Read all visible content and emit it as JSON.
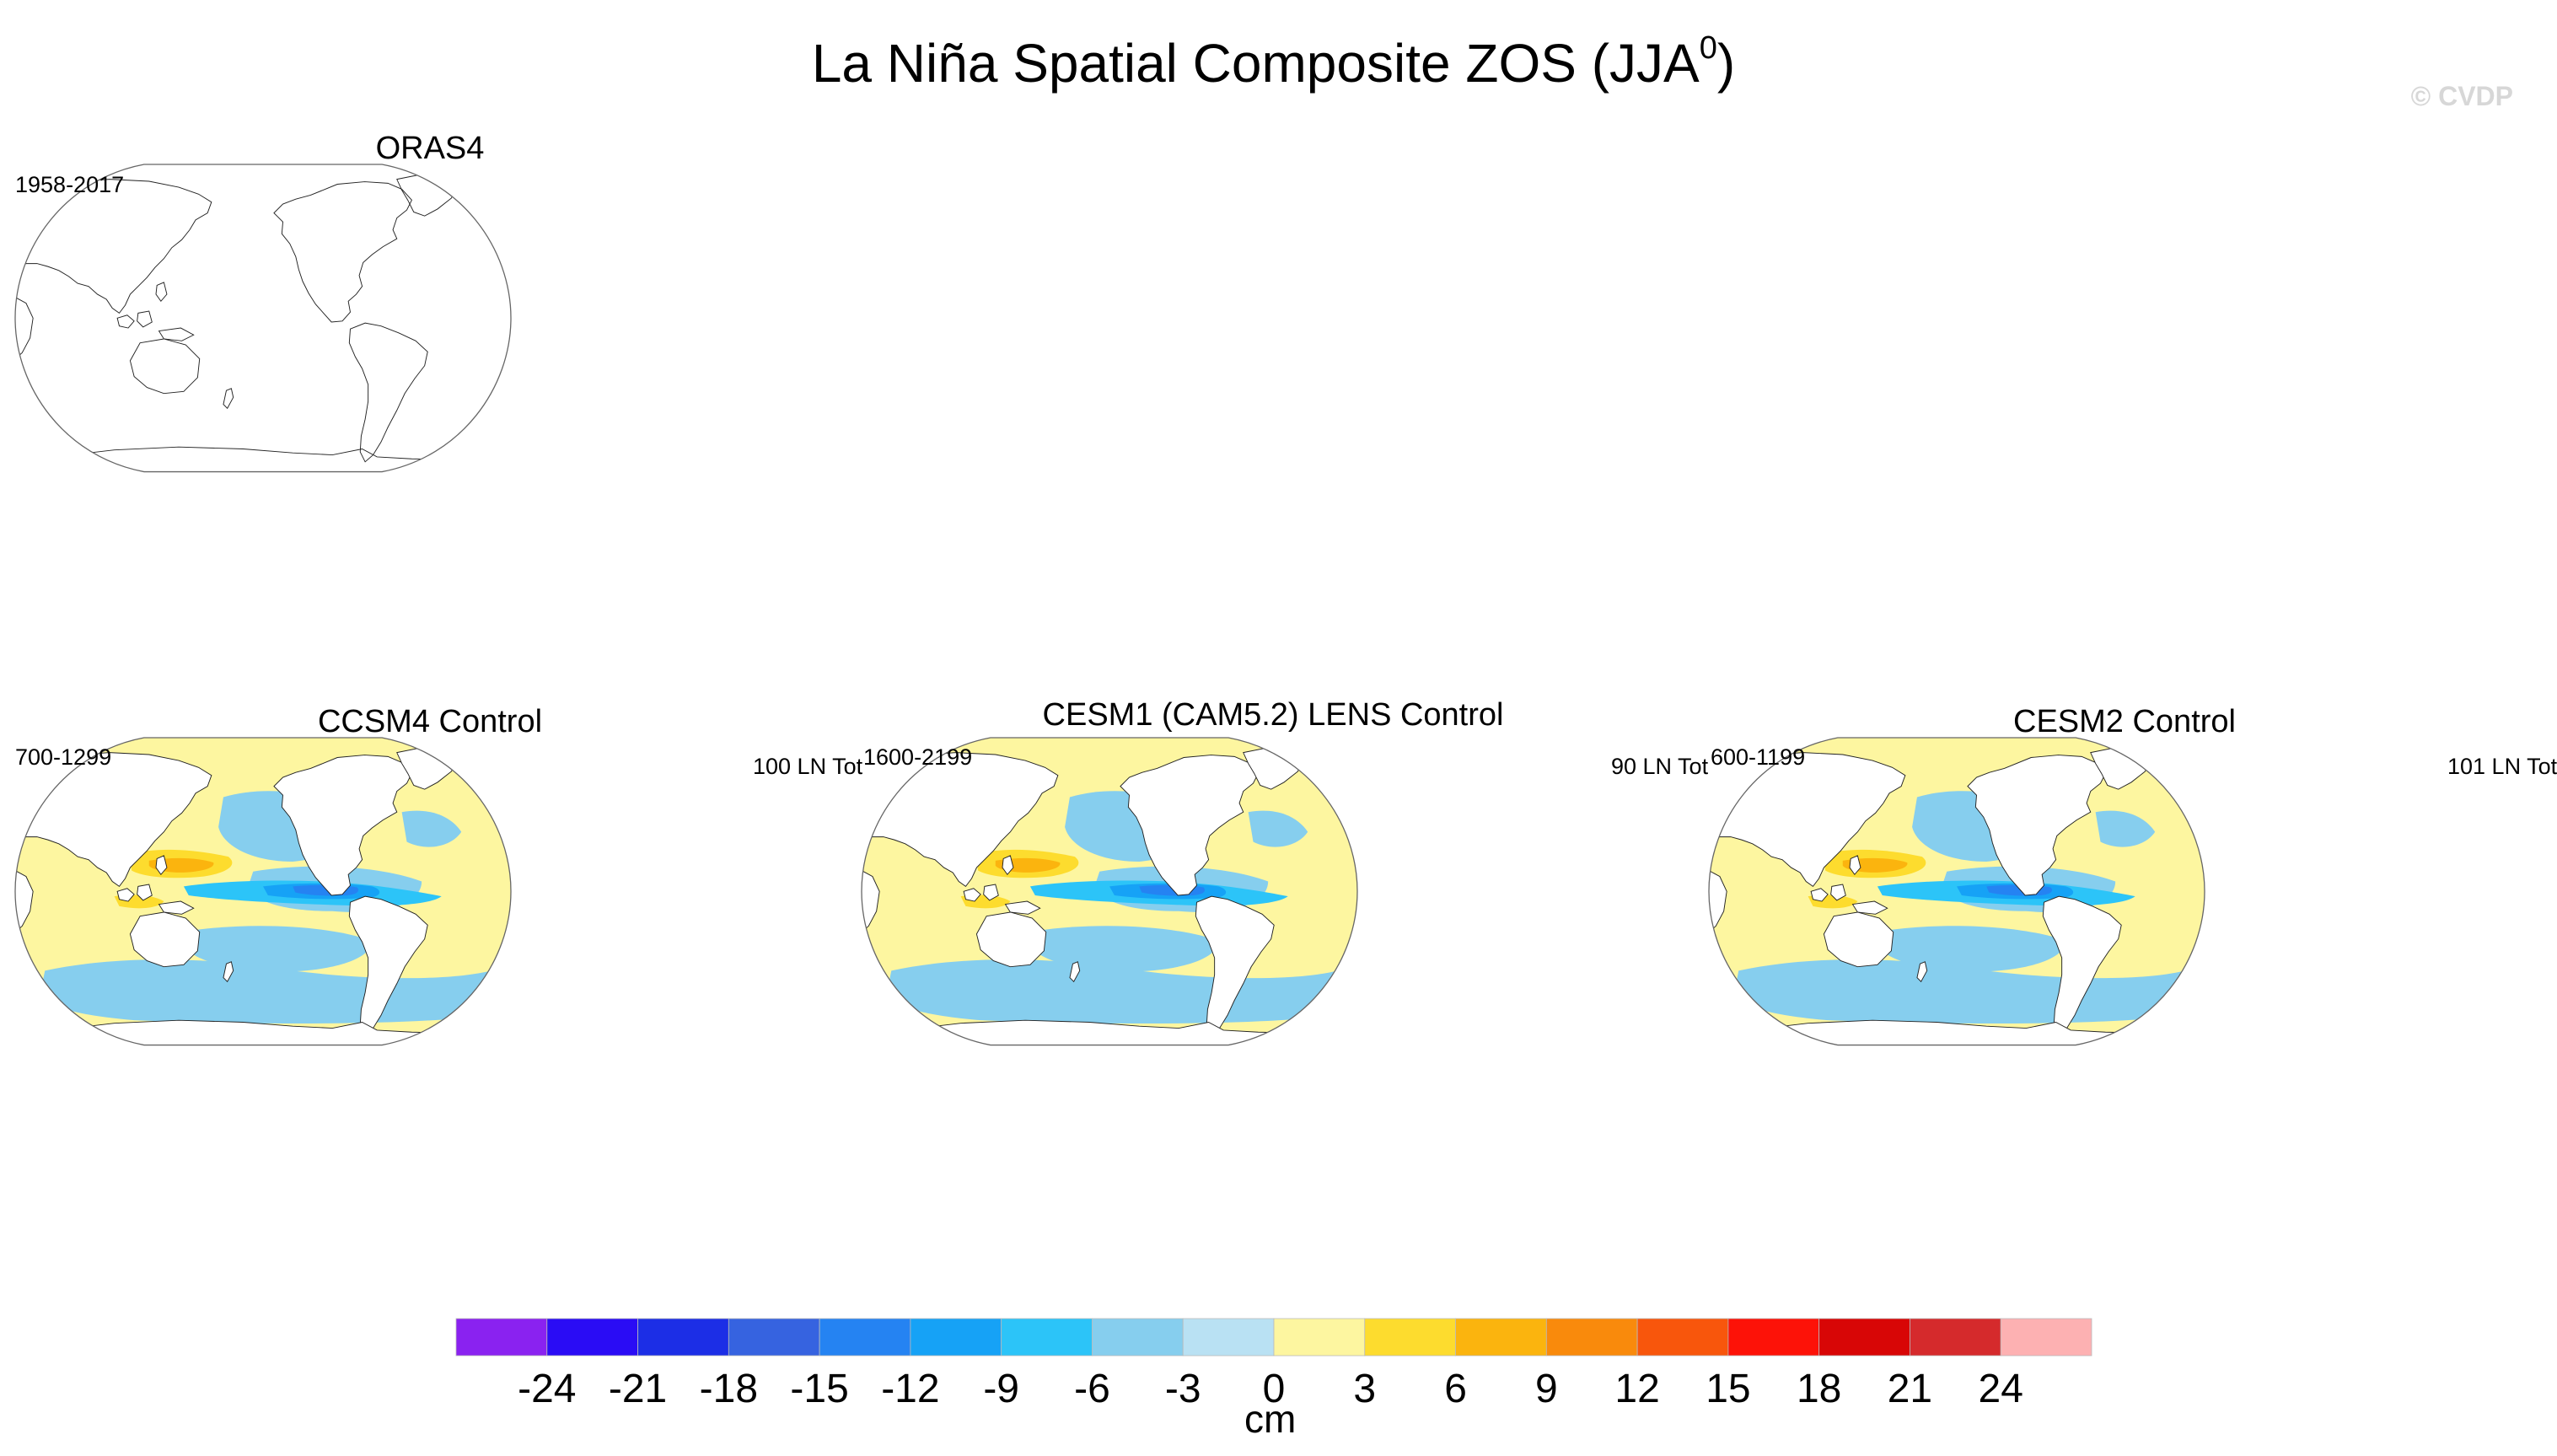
{
  "title": {
    "main": "La Niña Spatial Composite ZOS (JJA",
    "superscript": "0",
    "suffix": ")"
  },
  "watermark": "© CVDP",
  "panels": [
    {
      "name": "ORAS4",
      "years": "1958-2017",
      "count": "",
      "filled": false
    },
    {
      "name": "CCSM4 Control",
      "years": "700-1299",
      "count": "100 LN Tot",
      "filled": true
    },
    {
      "name": "CESM1 (CAM5.2) LENS Control",
      "years": "1600-2199",
      "count": "90 LN Tot",
      "filled": true
    },
    {
      "name": "CESM2 Control",
      "years": "600-1199",
      "count": "101 LN Tot",
      "filled": true
    }
  ],
  "chart_data": {
    "type": "heatmap",
    "title": "La Niña Spatial Composite ZOS (JJA0)",
    "projection": "Robinson (global, Pacific-centered)",
    "variable": "ZOS composite anomaly",
    "unit": "cm",
    "colorbar": {
      "levels": [
        -24,
        -21,
        -18,
        -15,
        -12,
        -9,
        -6,
        -3,
        0,
        3,
        6,
        9,
        12,
        15,
        18,
        21,
        24
      ],
      "colors": [
        "#8a22f0",
        "#2a0cf5",
        "#1c2ee6",
        "#3663e0",
        "#2583f2",
        "#16a2f6",
        "#2cc4f8",
        "#86ceee",
        "#b9e1f3",
        "#fdf6a0",
        "#fddc2e",
        "#fbb40e",
        "#f98a0c",
        "#f8560c",
        "#fd1208",
        "#d80606",
        "#d52a2c",
        "#fdb1b2"
      ]
    },
    "panels": [
      {
        "name": "ORAS4",
        "period": "1958-2017",
        "events": null,
        "data": "none"
      },
      {
        "name": "CCSM4 Control",
        "period": "700-1299",
        "events": 100,
        "central_pacific_min": -12,
        "western_pacific_max": 6
      },
      {
        "name": "CESM1 (CAM5.2) LENS Control",
        "period": "1600-2199",
        "events": 90,
        "central_pacific_min": -12,
        "western_pacific_max": 9
      },
      {
        "name": "CESM2 Control",
        "period": "600-1199",
        "events": 101,
        "central_pacific_min": -12,
        "western_pacific_max": 9
      }
    ]
  }
}
